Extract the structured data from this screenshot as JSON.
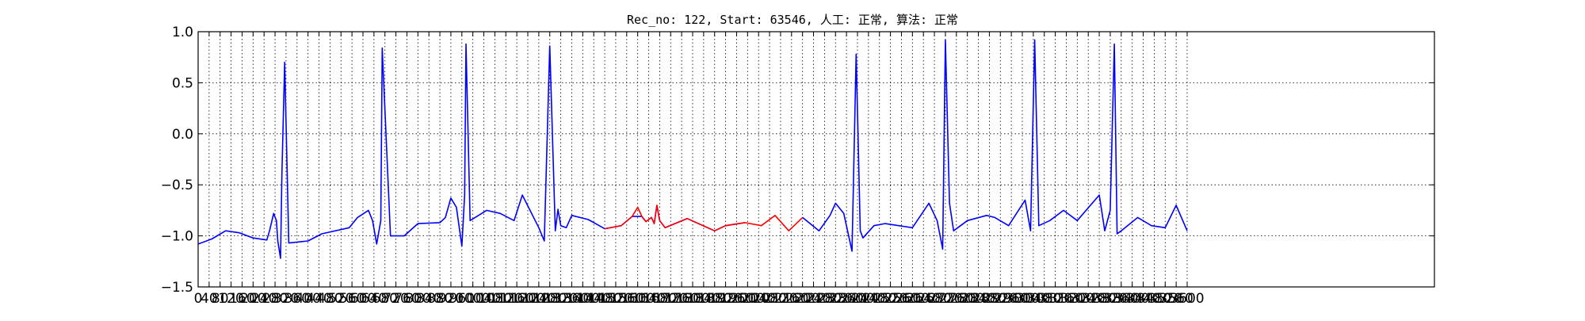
{
  "chart_data": {
    "type": "line",
    "title": "Rec_no: 122, Start: 63546, 人工: 正常, 算法: 正常",
    "xlabel": "",
    "ylabel": "",
    "xlim": [
      0,
      4500
    ],
    "ylim": [
      -1.5,
      1.0
    ],
    "yticks": [
      "−1.5",
      "−1.0",
      "−0.5",
      "0.0",
      "0.5",
      "1.0"
    ],
    "xticks": [
      "0",
      "40",
      "80",
      "120",
      "160",
      "200",
      "240",
      "280",
      "320",
      "360",
      "400",
      "440",
      "480",
      "520",
      "560",
      "600",
      "640",
      "680",
      "720",
      "760",
      "800",
      "840",
      "880",
      "920",
      "960",
      "1000",
      "1040",
      "1080",
      "1120",
      "1160",
      "1200",
      "1240",
      "1280",
      "1320",
      "1360",
      "1400",
      "1440",
      "1480",
      "1520",
      "1560",
      "1600",
      "1640",
      "1680",
      "1720",
      "1760",
      "1800",
      "1840",
      "1880",
      "1920",
      "1960",
      "2000",
      "2040",
      "2080",
      "2120",
      "2160",
      "2200",
      "2240",
      "2280",
      "2320",
      "2360",
      "2400",
      "2440",
      "2480",
      "2520",
      "2560",
      "2600",
      "2640",
      "2680",
      "2720",
      "2760",
      "2800",
      "2840",
      "2880",
      "2920",
      "2960",
      "3000",
      "3040",
      "3080",
      "3120",
      "3160",
      "3200",
      "3240",
      "3280",
      "3320",
      "3360",
      "3400",
      "3440",
      "3480",
      "3520",
      "3560",
      "3600"
    ],
    "grid": true,
    "colors": {
      "normal": "#0000ff",
      "highlight": "#ff0000"
    },
    "series": [
      {
        "color": "normal",
        "x": [
          0,
          50,
          100,
          150,
          200,
          250,
          260,
          275,
          285,
          290,
          300,
          305,
          315,
          330,
          400,
          450,
          550,
          580,
          620,
          635,
          650,
          665,
          670,
          700,
          750,
          800,
          880,
          900,
          920,
          940,
          960,
          970,
          975,
          990,
          1050,
          1100,
          1150,
          1180,
          1240,
          1260,
          1280,
          1300,
          1310,
          1320,
          1340,
          1360,
          1420,
          1480,
          1540,
          1580,
          1615,
          1630,
          1650,
          1660,
          1670,
          1680,
          1700,
          1780,
          1880,
          1920,
          1990
        ],
        "y": [
          -1.08,
          -1.03,
          -0.95,
          -0.97,
          -1.02,
          -1.04,
          -0.95,
          -0.78,
          -0.85,
          -1.05,
          -1.22,
          -0.4,
          0.7,
          -1.07,
          -1.05,
          -0.98,
          -0.92,
          -0.82,
          -0.75,
          -0.85,
          -1.08,
          -0.85,
          0.84,
          -1.0,
          -1.0,
          -0.88,
          -0.87,
          -0.82,
          -0.63,
          -0.72,
          -1.1,
          -0.6,
          0.88,
          -0.85,
          -0.75,
          -0.78,
          -0.85,
          -0.6,
          -0.92,
          -1.05,
          0.86,
          -0.95,
          -0.74,
          -0.9,
          -0.92,
          -0.8,
          -0.84,
          -0.93,
          -0.9,
          -0.81,
          -0.81,
          -0.86,
          -0.82,
          -0.88,
          -0.7,
          -0.85,
          -0.92,
          -0.83,
          -0.95,
          -0.9,
          -0.87
        ]
      },
      {
        "color": "highlight",
        "x": [
          1480,
          1540,
          1580,
          1600,
          1615,
          1630,
          1650,
          1660,
          1670,
          1680,
          1700,
          1780,
          1880,
          1920,
          1990,
          2050,
          2100,
          2150,
          2200
        ],
        "y": [
          -0.93,
          -0.9,
          -0.81,
          -0.72,
          -0.81,
          -0.86,
          -0.82,
          -0.88,
          -0.7,
          -0.85,
          -0.92,
          -0.83,
          -0.95,
          -0.9,
          -0.87,
          -0.9,
          -0.8,
          -0.95,
          -0.82
        ]
      },
      {
        "color": "normal",
        "x": [
          2200,
          2260,
          2300,
          2320,
          2350,
          2380,
          2395,
          2410,
          2420,
          2460,
          2500,
          2550,
          2600,
          2660,
          2690,
          2710,
          2720,
          2735,
          2750,
          2800,
          2870,
          2900,
          2950,
          3010,
          3030,
          3045,
          3060,
          3100,
          3150,
          3200,
          3280,
          3300,
          3320,
          3335,
          3345,
          3360,
          3420,
          3470,
          3520,
          3560,
          3600
        ],
        "y": [
          -0.82,
          -0.95,
          -0.8,
          -0.68,
          -0.78,
          -1.15,
          0.78,
          -0.95,
          -1.02,
          -0.9,
          -0.88,
          -0.9,
          -0.92,
          -0.68,
          -0.85,
          -1.13,
          0.92,
          -0.68,
          -0.95,
          -0.85,
          -0.8,
          -0.82,
          -0.9,
          -0.65,
          -0.95,
          0.92,
          -0.9,
          -0.85,
          -0.75,
          -0.85,
          -0.6,
          -0.95,
          -0.75,
          0.88,
          -0.98,
          -0.95,
          -0.82,
          -0.9,
          -0.92,
          -0.7,
          -0.95
        ]
      }
    ]
  }
}
